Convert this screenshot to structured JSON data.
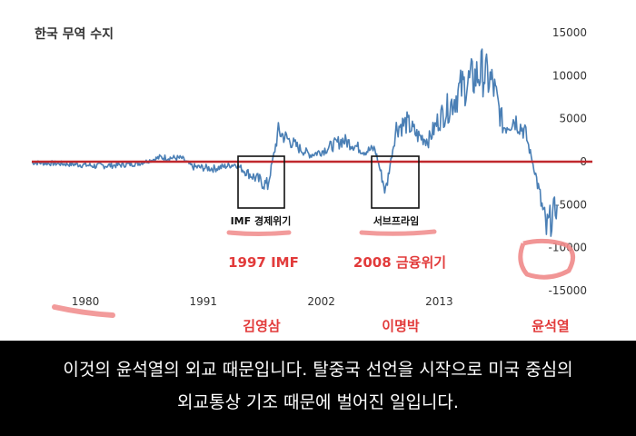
{
  "chart_data": {
    "type": "line",
    "title": "한국 무역 수지",
    "xlabel": "",
    "ylabel": "",
    "x_ticks": [
      "1980",
      "1991",
      "2002",
      "2013"
    ],
    "y_ticks": [
      "15000",
      "10000",
      "5000",
      "0",
      "-5000",
      "-10000",
      "-15000"
    ],
    "xlim": [
      1975,
      2025
    ],
    "ylim": [
      -15000,
      15000
    ],
    "grid": false,
    "legend": "none",
    "series": [
      {
        "color": "#4a7fb5",
        "x": [
          1975,
          1977,
          1979,
          1981,
          1983,
          1985,
          1987,
          1989,
          1990,
          1992,
          1994,
          1995,
          1996,
          1997,
          1998,
          1999,
          2000,
          2001,
          2002,
          2004,
          2005,
          2006,
          2007,
          2008,
          2009,
          2010,
          2011,
          2012,
          2013,
          2014,
          2015,
          2016,
          2017,
          2018,
          2019,
          2020,
          2021,
          2022,
          2023,
          2024
        ],
        "values": [
          -100,
          -200,
          -300,
          -500,
          -400,
          -200,
          500,
          400,
          -600,
          -800,
          -300,
          -1200,
          -2000,
          -2800,
          3500,
          2500,
          1500,
          800,
          1200,
          2500,
          2000,
          1200,
          1500,
          -3500,
          4000,
          4500,
          3000,
          2500,
          5000,
          6500,
          8500,
          9500,
          10500,
          9000,
          4000,
          5000,
          3500,
          -1500,
          -8000,
          -5000
        ]
      }
    ],
    "reference_line": {
      "y": 0,
      "color": "#c0282d"
    }
  },
  "annotations": {
    "box1_label": "IMF 경제위기",
    "box2_label": "서브프라임",
    "red1": "1997 IMF",
    "red2": "2008 금융위기",
    "president1": "김영삼",
    "president2": "이명박",
    "president3": "윤석열"
  },
  "caption": {
    "line1": "이것의 윤석열의 외교 때문입니다. 탈중국 선언을 시작으로 미국 중심의",
    "line2": "외교통상 기조 때문에 벌어진 일입니다."
  },
  "colors": {
    "series": "#4a7fb5",
    "zero_line": "#c0282d",
    "highlight": "#f08a8a",
    "annotation_red": "#e23b3b"
  }
}
